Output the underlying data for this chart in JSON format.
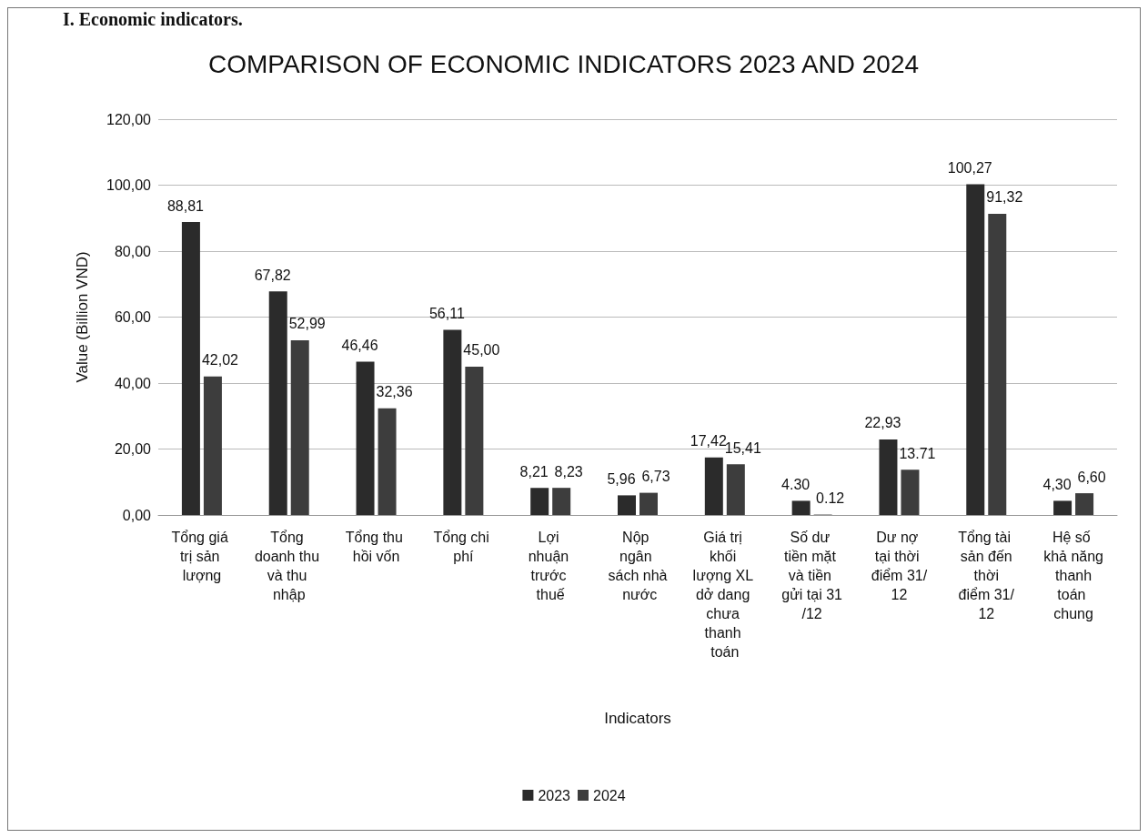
{
  "chart_data": {
    "type": "bar",
    "title": "COMPARISON OF ECONOMIC INDICATORS 2023 AND 2024",
    "xlabel": "Indicators",
    "ylabel": "Value (Billion VND)",
    "annotations": [
      "I. Economic indicators."
    ],
    "categories": [
      "Tổng giá trị sản lượng",
      "Tổng doanh thu và thu nhập",
      "Tổng thu hồi vốn",
      "Tổng chi phí",
      "Lợi nhuận trước thuế",
      "Nộp ngân sách nhà nước",
      "Giá trị khối lượng XL dở dang chưa thanh toán",
      "Số dư tiền mặt và tiền gửi tại 31/12",
      "Dư nợ tại thời điểm 31/12",
      "Tổng tài sản đến thời điểm 31/12",
      "Hệ số khả năng thanh toán chung"
    ],
    "series": [
      {
        "name": "2023",
        "color": "#2b2b2b",
        "values": [
          88.81,
          67.82,
          46.46,
          56.11,
          8.21,
          5.96,
          17.42,
          4.3,
          22.93,
          100.27,
          4.3
        ],
        "value_labels": [
          "88,81",
          "67,82",
          "46,46",
          "56,11",
          "8,21",
          "5,96",
          "17,42",
          "4.30",
          "22,93",
          "100,27",
          "4,30"
        ]
      },
      {
        "name": "2024",
        "color": "#3d3d3d",
        "values": [
          42.02,
          52.99,
          32.36,
          45.0,
          8.23,
          6.73,
          15.41,
          0.12,
          13.71,
          91.32,
          6.6
        ],
        "value_labels": [
          "42,02",
          "52,99",
          "32,36",
          "45,00",
          "8,23",
          "6,73",
          "15,41",
          "0.12",
          "13.71",
          "91,32",
          "6,60"
        ]
      }
    ],
    "ylim": [
      0,
      120
    ],
    "yticks": [
      {
        "value": 0,
        "label": "0,00"
      },
      {
        "value": 20,
        "label": "20,00"
      },
      {
        "value": 40,
        "label": "40,00"
      },
      {
        "value": 60,
        "label": "60,00"
      },
      {
        "value": 80,
        "label": "80,00"
      },
      {
        "value": 100,
        "label": "100,00"
      },
      {
        "value": 120,
        "label": "120,00"
      }
    ],
    "grid": "y",
    "legend": "bottom"
  }
}
